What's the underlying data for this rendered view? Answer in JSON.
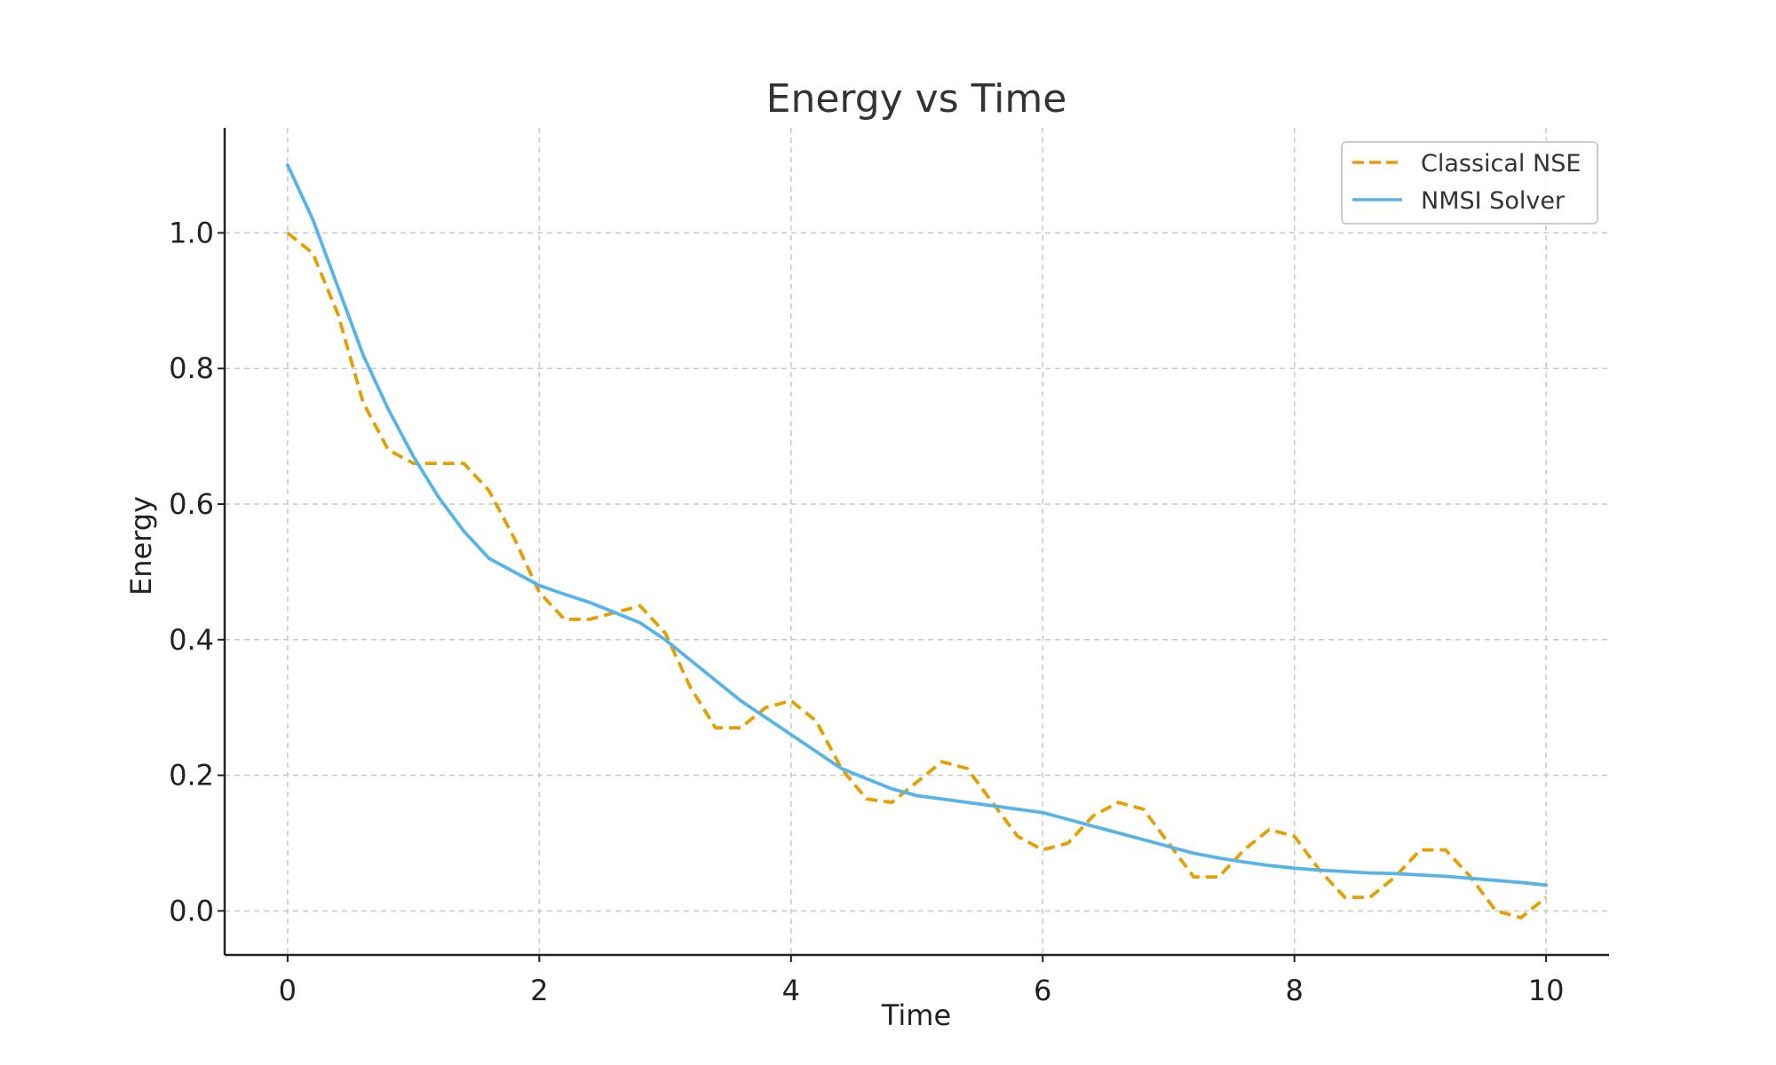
{
  "chart_data": {
    "type": "line",
    "title": "Energy vs Time",
    "xlabel": "Time",
    "ylabel": "Energy",
    "xlim": [
      -0.5,
      10.5
    ],
    "ylim": [
      -0.065,
      1.155
    ],
    "xticks": [
      0,
      2,
      4,
      6,
      8,
      10
    ],
    "xtick_labels": [
      "0",
      "2",
      "4",
      "6",
      "8",
      "10"
    ],
    "yticks": [
      0.0,
      0.2,
      0.4,
      0.6,
      0.8,
      1.0
    ],
    "ytick_labels": [
      "0.0",
      "0.2",
      "0.4",
      "0.6",
      "0.8",
      "1.0"
    ],
    "grid": true,
    "legend_position": "top-right",
    "series": [
      {
        "name": "Classical NSE",
        "color": "#E69F00",
        "style": "dashed",
        "x": [
          0,
          0.2,
          0.4,
          0.6,
          0.8,
          1.0,
          1.2,
          1.4,
          1.6,
          1.8,
          2.0,
          2.2,
          2.4,
          2.6,
          2.8,
          3.0,
          3.2,
          3.4,
          3.6,
          3.8,
          4.0,
          4.2,
          4.4,
          4.6,
          4.8,
          5.0,
          5.2,
          5.4,
          5.6,
          5.8,
          6.0,
          6.2,
          6.4,
          6.6,
          6.8,
          7.0,
          7.2,
          7.4,
          7.6,
          7.8,
          8.0,
          8.2,
          8.4,
          8.6,
          8.8,
          9.0,
          9.2,
          9.4,
          9.6,
          9.8,
          10.0
        ],
        "y": [
          1.0,
          0.97,
          0.88,
          0.75,
          0.68,
          0.66,
          0.66,
          0.66,
          0.62,
          0.55,
          0.47,
          0.43,
          0.43,
          0.44,
          0.45,
          0.41,
          0.33,
          0.27,
          0.27,
          0.3,
          0.31,
          0.28,
          0.21,
          0.165,
          0.16,
          0.19,
          0.22,
          0.21,
          0.16,
          0.11,
          0.09,
          0.1,
          0.14,
          0.16,
          0.15,
          0.1,
          0.05,
          0.05,
          0.09,
          0.12,
          0.11,
          0.06,
          0.02,
          0.02,
          0.05,
          0.09,
          0.09,
          0.05,
          0.0,
          -0.01,
          0.02
        ]
      },
      {
        "name": "NMSI Solver",
        "color": "#56B4E9",
        "style": "solid",
        "x": [
          0,
          0.2,
          0.4,
          0.6,
          0.8,
          1.0,
          1.2,
          1.4,
          1.6,
          1.8,
          2.0,
          2.2,
          2.4,
          2.6,
          2.8,
          3.0,
          3.2,
          3.4,
          3.6,
          3.8,
          4.0,
          4.2,
          4.4,
          4.6,
          4.8,
          5.0,
          5.2,
          5.4,
          5.6,
          5.8,
          6.0,
          6.2,
          6.4,
          6.6,
          6.8,
          7.0,
          7.2,
          7.4,
          7.6,
          7.8,
          8.0,
          8.2,
          8.4,
          8.6,
          8.8,
          9.0,
          9.2,
          9.4,
          9.6,
          9.8,
          10.0
        ],
        "y": [
          1.1,
          1.02,
          0.92,
          0.82,
          0.74,
          0.67,
          0.61,
          0.56,
          0.52,
          0.5,
          0.48,
          0.467,
          0.455,
          0.44,
          0.425,
          0.4,
          0.37,
          0.34,
          0.31,
          0.285,
          0.26,
          0.235,
          0.21,
          0.195,
          0.18,
          0.17,
          0.165,
          0.16,
          0.155,
          0.15,
          0.145,
          0.135,
          0.125,
          0.115,
          0.105,
          0.095,
          0.085,
          0.078,
          0.072,
          0.067,
          0.063,
          0.06,
          0.058,
          0.056,
          0.055,
          0.053,
          0.051,
          0.048,
          0.045,
          0.042,
          0.038
        ]
      }
    ]
  }
}
